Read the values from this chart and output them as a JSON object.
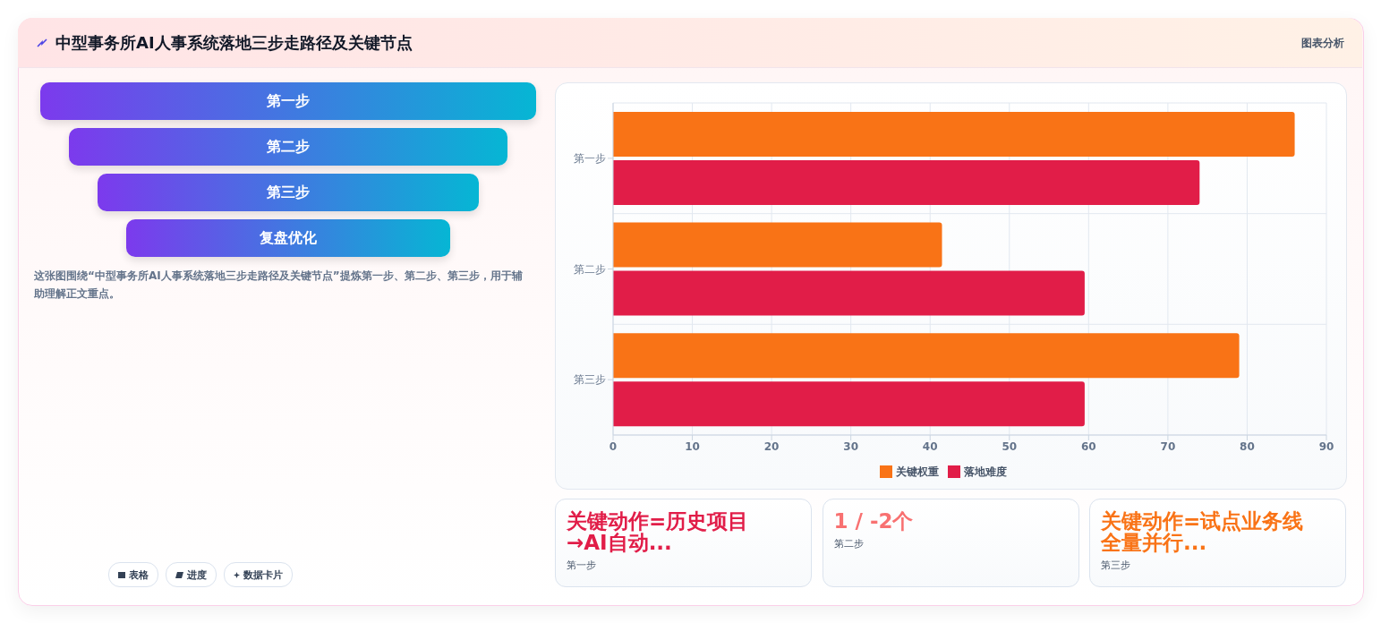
{
  "chart_data": [
    {
      "type": "other",
      "title": "中型事务所AI人事系统落地三步走路径及关键节点",
      "subtitle": "图表分析",
      "categories": [
        "第一步",
        "第二步",
        "第三步",
        "复盘优化"
      ],
      "annotations": [
        "这张图围绕“中型事务所AI人事系统落地三步走路径及关键节点”提炼第一步、第二步、第三步，用于辅助理解正文重点。",
        "表格",
        "进度",
        "数据卡片"
      ]
    },
    {
      "type": "bar",
      "orientation": "horizontal",
      "categories": [
        "第一步",
        "第二步",
        "第三步"
      ],
      "series": [
        {
          "name": "关键权重",
          "color": "#f97316",
          "values": [
            86,
            41.5,
            79
          ]
        },
        {
          "name": "落地难度",
          "color": "#e11d48",
          "values": [
            74,
            59.5,
            59.5
          ]
        }
      ],
      "xlim": [
        0,
        90
      ],
      "xticks": [
        0,
        10,
        20,
        30,
        40,
        50,
        60,
        70,
        80,
        90
      ],
      "grid": true,
      "legend": "bottom"
    },
    {
      "type": "other",
      "categories": [
        "关键动作=历史项目→AI自动...",
        "1 / -2个",
        "关键动作=试点业务线全量并行..."
      ],
      "annotations": [
        "第一步",
        "第二步",
        "第三步"
      ]
    }
  ]
}
